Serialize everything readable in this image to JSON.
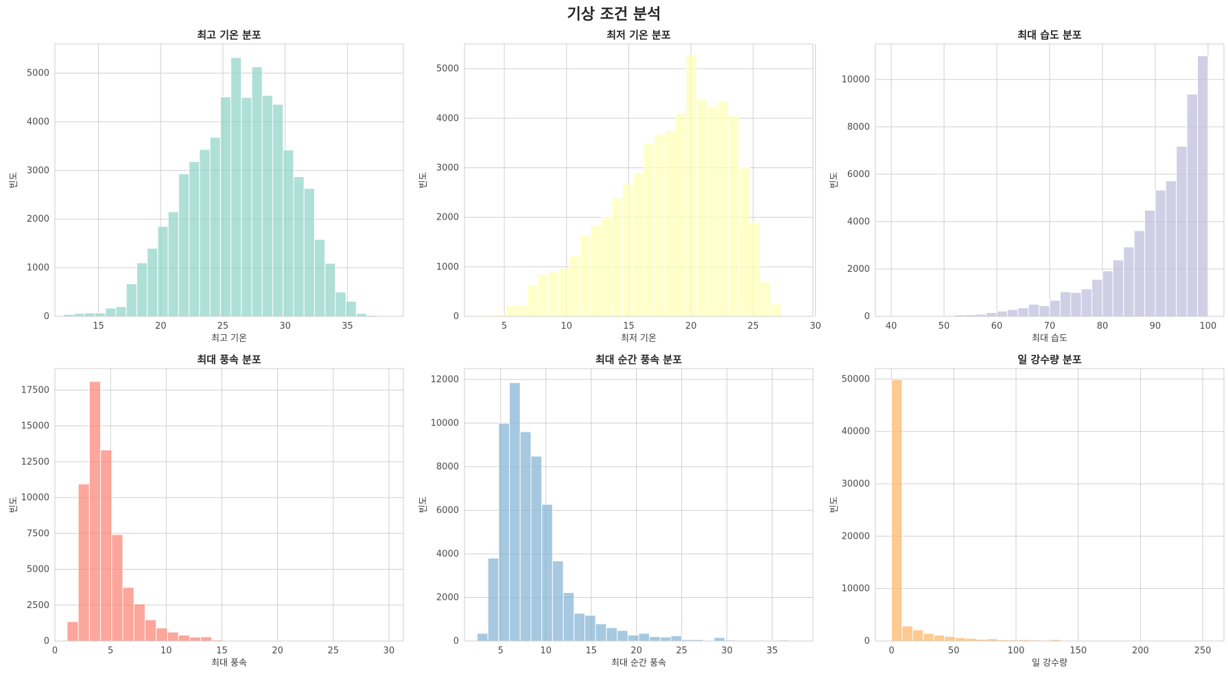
{
  "figure": {
    "title": "기상 조건 분석"
  },
  "chart_data": [
    {
      "type": "bar",
      "title": "최고 기온 분포",
      "xlabel": "최고 기온",
      "ylabel": "빈도",
      "color": "#8dd3c7",
      "xlim": [
        11.5,
        39.5
      ],
      "ylim": [
        0,
        5600
      ],
      "xticks": [
        15,
        20,
        25,
        30,
        35
      ],
      "yticks": [
        0,
        1000,
        2000,
        3000,
        4000,
        5000
      ],
      "bin_start": 12.2,
      "bin_width": 0.84,
      "values": [
        40,
        60,
        70,
        70,
        170,
        200,
        670,
        1100,
        1400,
        1850,
        2150,
        2930,
        3180,
        3430,
        3680,
        4510,
        5320,
        4500,
        5130,
        4540,
        4360,
        3420,
        2870,
        2630,
        1580,
        1090,
        500,
        310,
        60,
        20
      ]
    },
    {
      "type": "bar",
      "title": "최저 기온 분포",
      "xlabel": "최저 기온",
      "ylabel": "빈도",
      "color": "#ffffb3",
      "xlim": [
        1.8,
        29.8
      ],
      "ylim": [
        0,
        5500
      ],
      "xticks": [
        5,
        10,
        15,
        20,
        25,
        30
      ],
      "yticks": [
        0,
        1000,
        2000,
        3000,
        4000,
        5000
      ],
      "bin_start": 2.6,
      "bin_width": 0.85,
      "values": [
        10,
        20,
        40,
        220,
        230,
        620,
        850,
        900,
        970,
        1220,
        1640,
        1840,
        2010,
        2390,
        2680,
        2890,
        3500,
        3670,
        3750,
        4090,
        5280,
        4380,
        4240,
        4340,
        4050,
        3000,
        1900,
        700,
        250,
        10
      ]
    },
    {
      "type": "bar",
      "title": "최대 습도 분포",
      "xlabel": "최대 습도",
      "ylabel": "빈도",
      "color": "#bebada",
      "xlim": [
        37,
        103
      ],
      "ylim": [
        0,
        11500
      ],
      "xticks": [
        40,
        50,
        60,
        70,
        80,
        90,
        100
      ],
      "yticks": [
        0,
        2000,
        4000,
        6000,
        8000,
        10000
      ],
      "bin_start": 40,
      "bin_width": 2,
      "values": [
        10,
        10,
        10,
        10,
        20,
        30,
        60,
        70,
        90,
        160,
        220,
        290,
        360,
        510,
        450,
        680,
        1040,
        1010,
        1160,
        1560,
        1920,
        2380,
        2930,
        3620,
        4480,
        5330,
        5720,
        7180,
        9380,
        11000
      ]
    },
    {
      "type": "bar",
      "title": "최대 풍속 분포",
      "xlabel": "최대 풍속",
      "ylabel": "빈도",
      "color": "#fb8072",
      "xlim": [
        0,
        31.3
      ],
      "ylim": [
        0,
        19000
      ],
      "xticks": [
        0,
        5,
        10,
        15,
        20,
        25,
        30
      ],
      "yticks": [
        0,
        2500,
        5000,
        7500,
        10000,
        12500,
        15000,
        17500
      ],
      "bin_start": 1.1,
      "bin_width": 1.0,
      "values": [
        1350,
        10950,
        18100,
        13320,
        7420,
        3740,
        2580,
        1480,
        910,
        620,
        410,
        270,
        290,
        70,
        30,
        20,
        10,
        10,
        10,
        5,
        5,
        5,
        5,
        5,
        5,
        5,
        5,
        5,
        5,
        5
      ]
    },
    {
      "type": "bar",
      "title": "최대 순간 풍속 분포",
      "xlabel": "최대 순간 풍속",
      "ylabel": "빈도",
      "color": "#80b1d3",
      "xlim": [
        1.0,
        39.5
      ],
      "ylim": [
        0,
        12500
      ],
      "xticks": [
        5,
        10,
        15,
        20,
        25,
        30,
        35
      ],
      "yticks": [
        0,
        2000,
        4000,
        6000,
        8000,
        10000,
        12000
      ],
      "bin_start": 2.4,
      "bin_width": 1.19,
      "values": [
        350,
        3800,
        9980,
        11850,
        9600,
        8480,
        6270,
        3670,
        2220,
        1270,
        1180,
        790,
        610,
        480,
        270,
        350,
        200,
        180,
        240,
        60,
        60,
        30,
        160,
        40,
        30,
        20,
        20,
        20,
        40,
        30
      ]
    },
    {
      "type": "bar",
      "title": "일 강수량 분포",
      "xlabel": "일 강수량",
      "ylabel": "빈도",
      "color": "#fdb462",
      "xlim": [
        -13,
        267
      ],
      "ylim": [
        0,
        52000
      ],
      "xticks": [
        0,
        50,
        100,
        150,
        200,
        250
      ],
      "yticks": [
        0,
        10000,
        20000,
        30000,
        40000,
        50000
      ],
      "bin_start": 0,
      "bin_width": 8.5,
      "values": [
        49900,
        2860,
        2120,
        1420,
        1120,
        880,
        640,
        500,
        320,
        420,
        240,
        210,
        260,
        180,
        150,
        270,
        110,
        90,
        60,
        50,
        40,
        40,
        30,
        20,
        20,
        10,
        10,
        10,
        10,
        10
      ]
    }
  ]
}
